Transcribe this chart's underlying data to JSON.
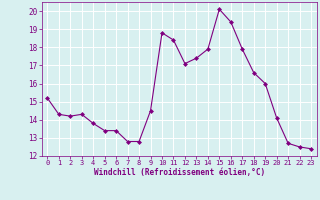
{
  "x": [
    0,
    1,
    2,
    3,
    4,
    5,
    6,
    7,
    8,
    9,
    10,
    11,
    12,
    13,
    14,
    15,
    16,
    17,
    18,
    19,
    20,
    21,
    22,
    23
  ],
  "y": [
    15.2,
    14.3,
    14.2,
    14.3,
    13.8,
    13.4,
    13.4,
    12.8,
    12.8,
    14.5,
    18.8,
    18.4,
    17.1,
    17.4,
    17.9,
    20.1,
    19.4,
    17.9,
    16.6,
    16.0,
    14.1,
    12.7,
    12.5,
    12.4
  ],
  "line_color": "#800080",
  "marker": "D",
  "marker_size": 2.0,
  "bg_color": "#d8f0f0",
  "grid_color": "#ffffff",
  "xlabel": "Windchill (Refroidissement éolien,°C)",
  "xlabel_color": "#800080",
  "tick_color": "#800080",
  "ylim": [
    12,
    20.5
  ],
  "xlim": [
    -0.5,
    23.5
  ],
  "yticks": [
    12,
    13,
    14,
    15,
    16,
    17,
    18,
    19,
    20
  ],
  "xticks": [
    0,
    1,
    2,
    3,
    4,
    5,
    6,
    7,
    8,
    9,
    10,
    11,
    12,
    13,
    14,
    15,
    16,
    17,
    18,
    19,
    20,
    21,
    22,
    23
  ],
  "figsize": [
    3.2,
    2.0
  ],
  "dpi": 100
}
